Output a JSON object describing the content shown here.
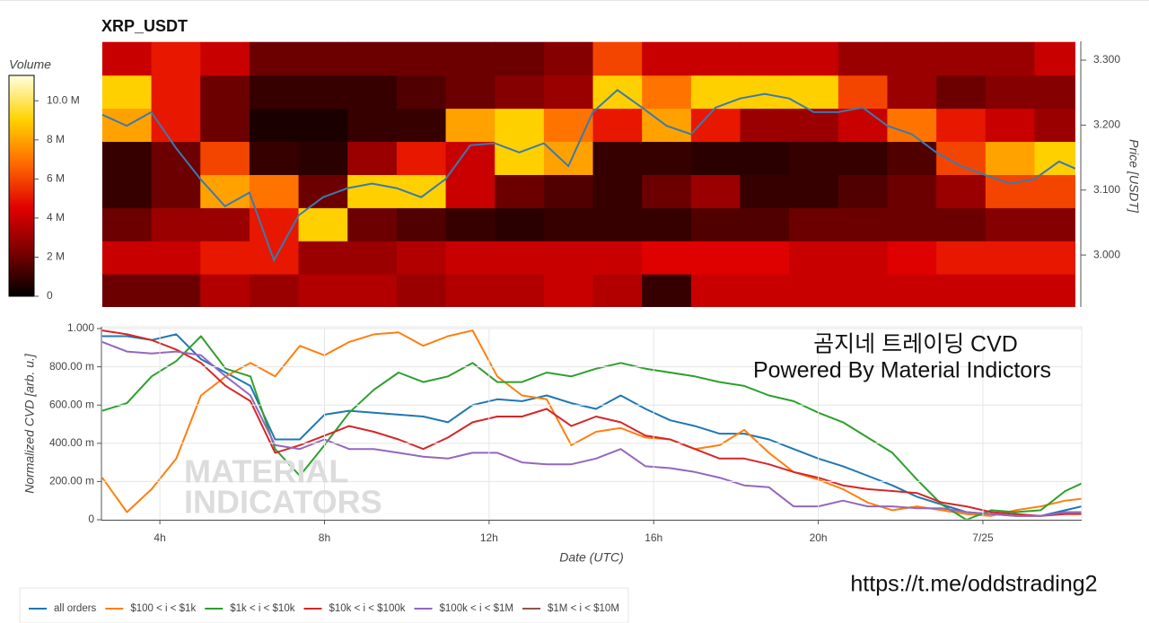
{
  "chart_data": [
    {
      "type": "heatmap",
      "title": "XRP_USDT",
      "ylabel": "Price [USDT]",
      "colorbar_title": "Volume",
      "xlim": [
        2.58,
        26.4
      ],
      "ylim": [
        2.92,
        3.329
      ],
      "yticks": [
        {
          "value": 3.0,
          "label": "3.000"
        },
        {
          "value": 3.1,
          "label": "3.100"
        },
        {
          "value": 3.2,
          "label": "3.200"
        },
        {
          "value": 3.3,
          "label": "3.300"
        }
      ],
      "clim": [
        0,
        11.3
      ],
      "cticks": [
        0,
        {
          "value": 2,
          "label": "2 M"
        },
        {
          "value": 4,
          "label": "4 M"
        },
        {
          "value": 6,
          "label": "6 M"
        },
        {
          "value": 8,
          "label": "8 M"
        },
        {
          "value": 10,
          "label": "10.0 M"
        }
      ],
      "colormap": [
        "#000000",
        "#7a0000",
        "#e00000",
        "#ff6a00",
        "#ffd200",
        "#ffffe0"
      ],
      "x_bins": [
        2.6,
        3.8,
        5.0,
        6.2,
        7.4,
        8.6,
        9.8,
        11.0,
        12.2,
        13.4,
        14.6,
        15.8,
        17.0,
        18.2,
        19.4,
        20.6,
        21.8,
        23.0,
        24.2,
        25.4,
        26.6
      ],
      "y_bins": [
        2.92,
        2.971,
        3.022,
        3.073,
        3.124,
        3.175,
        3.226,
        3.277,
        3.328
      ],
      "z": [
        [
          2,
          2,
          3.5,
          3,
          3.5,
          3.5,
          3,
          3.5,
          3.5,
          4,
          3.5,
          1,
          4,
          4,
          4,
          4,
          4,
          4,
          4,
          4
        ],
        [
          4,
          4,
          5,
          5,
          3,
          3,
          3.5,
          4,
          4,
          4,
          4,
          4.5,
          4.5,
          4.5,
          4,
          4,
          4.5,
          5,
          5,
          5
        ],
        [
          2,
          3,
          3,
          5,
          9,
          2,
          1.5,
          1,
          0.8,
          1,
          1,
          1,
          1.5,
          1.5,
          2,
          2,
          2,
          2,
          2.5,
          2.5
        ],
        [
          1,
          2,
          8,
          7,
          2,
          9,
          9,
          4,
          2,
          1.5,
          1,
          2,
          3,
          1,
          1,
          1.5,
          2,
          3,
          6,
          6
        ],
        [
          1,
          2,
          6,
          1,
          0.8,
          3,
          5,
          4,
          9,
          8,
          1,
          1,
          0.8,
          0.8,
          1,
          1,
          1.5,
          6,
          8,
          9
        ],
        [
          8,
          5,
          2,
          0.5,
          0.5,
          1,
          1,
          8,
          9,
          7,
          5,
          8,
          5,
          3,
          3,
          4,
          7,
          5,
          4,
          3
        ],
        [
          9,
          5,
          2,
          1,
          1,
          1,
          1.5,
          2,
          2.5,
          3,
          9,
          7,
          9,
          9,
          9,
          6,
          3,
          2,
          2.5,
          2.5
        ],
        [
          4,
          5,
          4,
          2,
          2,
          2,
          2,
          2,
          2,
          2.5,
          6,
          4,
          4,
          4,
          4,
          3,
          3,
          3,
          3,
          4
        ]
      ],
      "price": {
        "color": "#3b7ab0",
        "x": [
          2.6,
          3.2,
          3.8,
          4.4,
          5.0,
          5.6,
          6.2,
          6.8,
          7.4,
          8.0,
          8.6,
          9.2,
          9.8,
          10.4,
          11.0,
          11.6,
          12.2,
          12.8,
          13.4,
          14.0,
          14.6,
          15.2,
          15.8,
          16.4,
          17.0,
          17.6,
          18.2,
          18.8,
          19.4,
          20.0,
          20.6,
          21.2,
          21.8,
          22.4,
          23.0,
          23.6,
          24.2,
          24.8,
          25.4,
          26.0,
          26.4
        ],
        "values": [
          3.216,
          3.199,
          3.22,
          3.165,
          3.117,
          3.075,
          3.096,
          2.992,
          3.061,
          3.089,
          3.103,
          3.11,
          3.103,
          3.089,
          3.117,
          3.169,
          3.172,
          3.158,
          3.172,
          3.137,
          3.22,
          3.254,
          3.227,
          3.199,
          3.186,
          3.227,
          3.241,
          3.248,
          3.241,
          3.22,
          3.22,
          3.227,
          3.199,
          3.186,
          3.158,
          3.137,
          3.123,
          3.11,
          3.117,
          3.144,
          3.133
        ]
      }
    },
    {
      "type": "line",
      "xlabel": "Date (UTC)",
      "ylabel": "Normalized CVD [arb. u.]",
      "grid": true,
      "legend": "bottom-left",
      "xlim": [
        2.58,
        26.4
      ],
      "ylim": [
        0,
        1.0
      ],
      "xticks": [
        {
          "value": 4,
          "label": "4h"
        },
        {
          "value": 8,
          "label": "8h"
        },
        {
          "value": 12,
          "label": "12h"
        },
        {
          "value": 16,
          "label": "16h"
        },
        {
          "value": 20,
          "label": "20h"
        },
        {
          "value": 24,
          "label": "7/25"
        }
      ],
      "yticks": [
        0,
        {
          "value": 0.2,
          "label": "200.00 m"
        },
        {
          "value": 0.4,
          "label": "400.00 m"
        },
        {
          "value": 0.6,
          "label": "600.00 m"
        },
        {
          "value": 0.8,
          "label": "800.00 m"
        },
        {
          "value": 1.0,
          "label": "1.000"
        }
      ],
      "annotations": [
        "곰지네 트레이딩 CVD",
        "Powered By Material Indictors",
        "https://t.me/oddstrading2",
        "MATERIAL",
        "INDICATORS"
      ],
      "x": [
        2.6,
        3.2,
        3.8,
        4.4,
        5.0,
        5.6,
        6.2,
        6.8,
        7.4,
        8.0,
        8.6,
        9.2,
        9.8,
        10.4,
        11.0,
        11.6,
        12.2,
        12.8,
        13.4,
        14.0,
        14.6,
        15.2,
        15.8,
        16.4,
        17.0,
        17.6,
        18.2,
        18.8,
        19.4,
        20.0,
        20.6,
        21.2,
        21.8,
        22.4,
        23.0,
        23.6,
        24.2,
        24.8,
        25.4,
        26.0,
        26.4
      ],
      "series": [
        {
          "name": "all orders",
          "color": "#1f77b4",
          "values": [
            0.96,
            0.96,
            0.94,
            0.97,
            0.84,
            0.77,
            0.7,
            0.42,
            0.42,
            0.55,
            0.57,
            0.56,
            0.55,
            0.54,
            0.51,
            0.6,
            0.63,
            0.62,
            0.65,
            0.61,
            0.58,
            0.65,
            0.58,
            0.52,
            0.49,
            0.45,
            0.45,
            0.42,
            0.37,
            0.32,
            0.28,
            0.23,
            0.18,
            0.12,
            0.08,
            0.04,
            0.03,
            0.02,
            0.02,
            0.05,
            0.07
          ]
        },
        {
          "name": "$100 < i < $1k",
          "color": "#ff7f0e",
          "values": [
            0.22,
            0.04,
            0.16,
            0.32,
            0.65,
            0.75,
            0.82,
            0.75,
            0.91,
            0.86,
            0.93,
            0.97,
            0.98,
            0.91,
            0.96,
            0.99,
            0.75,
            0.65,
            0.63,
            0.39,
            0.46,
            0.48,
            0.43,
            0.42,
            0.37,
            0.39,
            0.47,
            0.35,
            0.25,
            0.21,
            0.16,
            0.09,
            0.05,
            0.07,
            0.05,
            0.03,
            0.02,
            0.05,
            0.07,
            0.1,
            0.11
          ]
        },
        {
          "name": "$1k < i < $10k",
          "color": "#2ca02c",
          "values": [
            0.57,
            0.61,
            0.75,
            0.83,
            0.96,
            0.79,
            0.75,
            0.37,
            0.23,
            0.39,
            0.56,
            0.68,
            0.77,
            0.72,
            0.75,
            0.82,
            0.72,
            0.72,
            0.77,
            0.75,
            0.79,
            0.82,
            0.79,
            0.77,
            0.75,
            0.72,
            0.7,
            0.65,
            0.62,
            0.56,
            0.51,
            0.43,
            0.35,
            0.21,
            0.08,
            0.0,
            0.05,
            0.04,
            0.05,
            0.15,
            0.19
          ]
        },
        {
          "name": "$10k < i < $100k",
          "color": "#d62728",
          "values": [
            0.99,
            0.97,
            0.94,
            0.89,
            0.82,
            0.7,
            0.62,
            0.35,
            0.39,
            0.44,
            0.49,
            0.46,
            0.42,
            0.37,
            0.43,
            0.51,
            0.54,
            0.54,
            0.58,
            0.49,
            0.54,
            0.51,
            0.44,
            0.42,
            0.37,
            0.32,
            0.32,
            0.29,
            0.25,
            0.22,
            0.18,
            0.16,
            0.15,
            0.14,
            0.09,
            0.07,
            0.04,
            0.03,
            0.02,
            0.03,
            0.03
          ]
        },
        {
          "name": "$100k < i < $1M",
          "color": "#9467bd",
          "values": [
            0.93,
            0.88,
            0.87,
            0.88,
            0.86,
            0.75,
            0.65,
            0.39,
            0.37,
            0.42,
            0.37,
            0.37,
            0.35,
            0.33,
            0.32,
            0.35,
            0.35,
            0.3,
            0.29,
            0.29,
            0.32,
            0.37,
            0.28,
            0.27,
            0.25,
            0.22,
            0.18,
            0.17,
            0.07,
            0.07,
            0.1,
            0.07,
            0.07,
            0.06,
            0.06,
            0.04,
            0.03,
            0.02,
            0.02,
            0.04,
            0.04
          ]
        },
        {
          "name": "$1M < i < $10M",
          "color": "#8c564b",
          "values": [
            null,
            null,
            null,
            null,
            null,
            null,
            null,
            null,
            null,
            null,
            null,
            null,
            null,
            null,
            null,
            null,
            null,
            null,
            null,
            null,
            null,
            null,
            null,
            null,
            null,
            null,
            null,
            null,
            null,
            null,
            null,
            null,
            null,
            null,
            null,
            null,
            null,
            null,
            null,
            null,
            null
          ]
        }
      ]
    }
  ]
}
